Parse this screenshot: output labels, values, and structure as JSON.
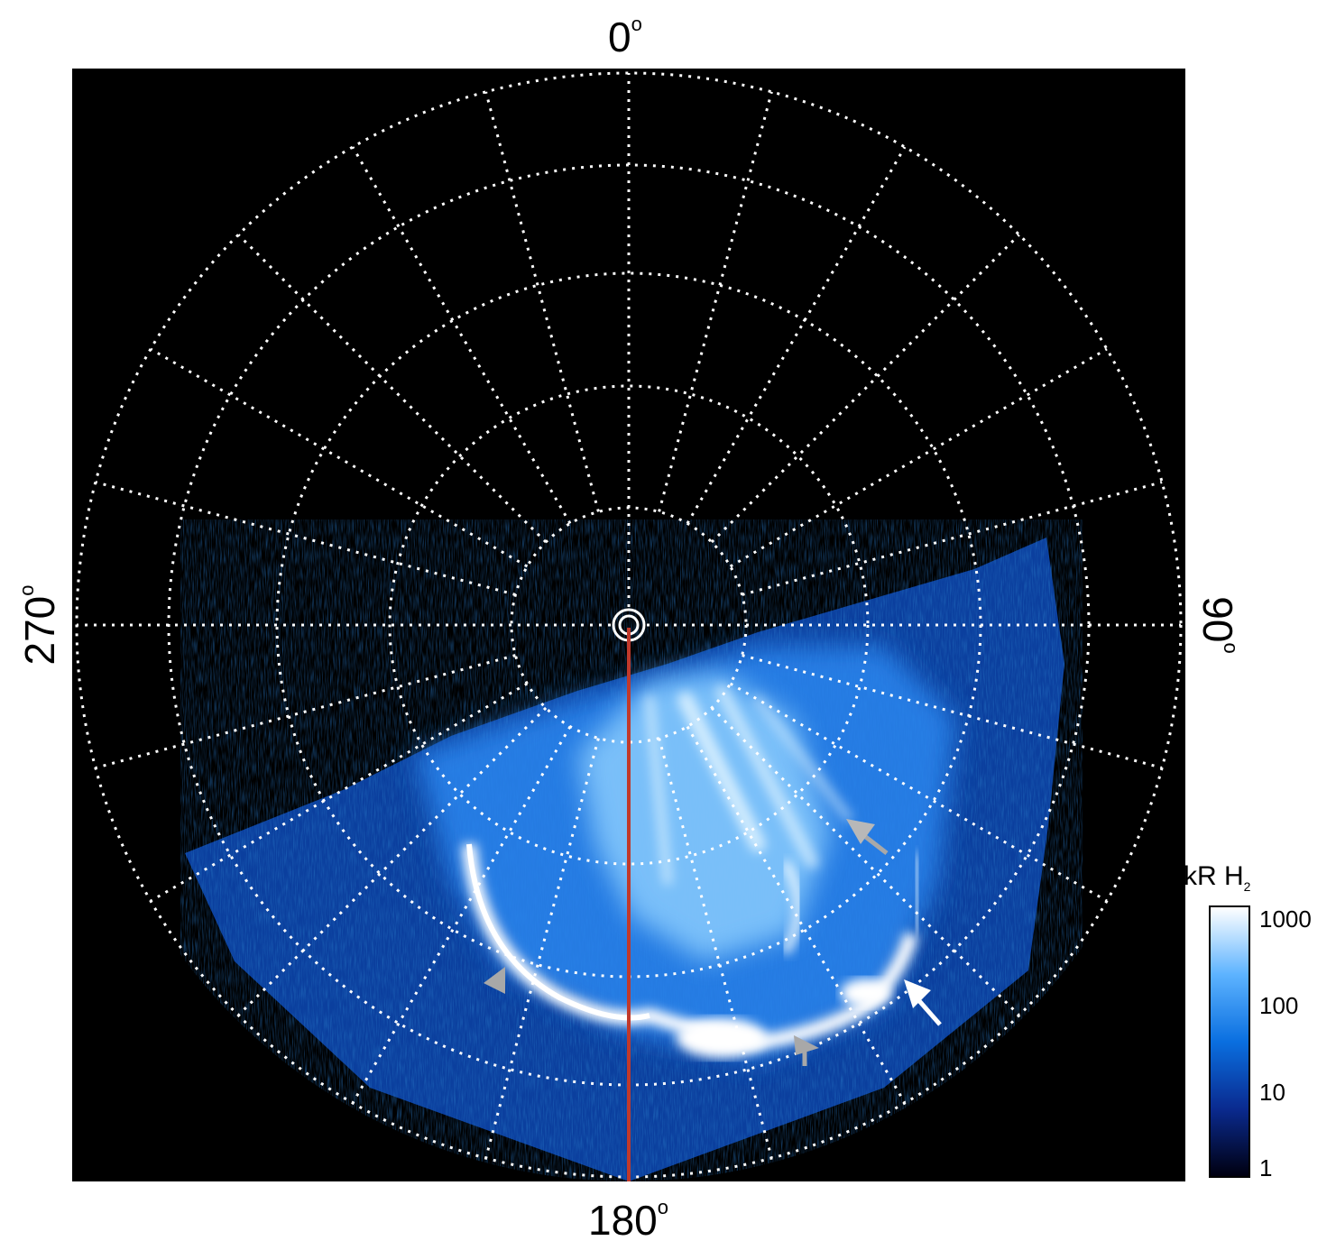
{
  "figure": {
    "label_top": "0",
    "label_bottom": "180",
    "label_left": "270",
    "label_right": "90",
    "degree_symbol": "o"
  },
  "colorbar": {
    "unit": "kR H",
    "unit_subscript": "2",
    "ticks": [
      "1000",
      "100",
      "10",
      "1"
    ],
    "colors": [
      "#ffffff",
      "#5db3ff",
      "#0a6fe0",
      "#0a2a8f",
      "#000010"
    ]
  },
  "colors": {
    "background": "#000000",
    "grid": "#ffffff",
    "meridian_line": "#c0392b",
    "arrow_white": "#ffffff",
    "arrow_gray": "#a8a8a8"
  },
  "annotations": {
    "arrows": [
      {
        "color": "gray",
        "direction": "up-left"
      },
      {
        "color": "white",
        "direction": "up-left"
      },
      {
        "color": "gray",
        "direction": "up-left"
      },
      {
        "color": "gray",
        "direction": "up-left"
      }
    ]
  }
}
